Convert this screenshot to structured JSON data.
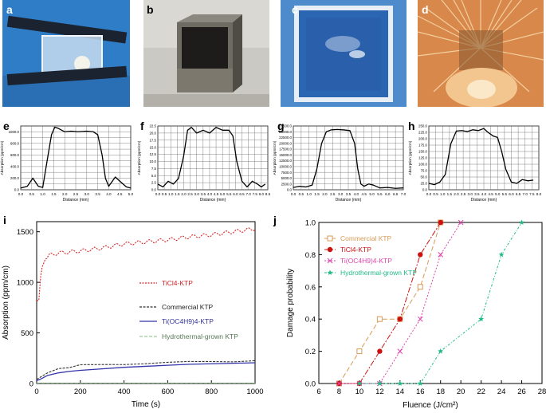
{
  "panels": {
    "a": {
      "label": "a"
    },
    "b": {
      "label": "b"
    },
    "c": {
      "label": "c"
    },
    "d": {
      "label": "d"
    },
    "e": {
      "label": "e"
    },
    "f": {
      "label": "f"
    },
    "g": {
      "label": "g"
    },
    "h": {
      "label": "h"
    },
    "i": {
      "label": "i"
    },
    "j": {
      "label": "j"
    }
  },
  "colors": {
    "photo_a_bg": "#2d7ec7",
    "photo_b_bg": "#c9c7c2",
    "photo_c_bg": "#5b95d0",
    "photo_d_bg": "#d98a4a",
    "ticl4": "#d62728",
    "commercial": "#333333",
    "tioc4h9": "#3333aa",
    "hydro": "#9acd9a",
    "j_commercial": "#d99a55",
    "j_ticl4": "#cc1111",
    "j_tioc": "#dd44aa",
    "j_hydro": "#22bb88"
  },
  "chart_data": [
    {
      "id": "e",
      "type": "line",
      "title": "",
      "xlabel": "Distance (mm)",
      "ylabel": "Absorption (ppm/cm)",
      "xlim": [
        0,
        5
      ],
      "ylim": [
        0,
        1100
      ],
      "xticks": [
        "0.0",
        "0.5",
        "1.0",
        "1.5",
        "2.0",
        "2.5",
        "3.0",
        "3.5",
        "4.0",
        "4.5",
        "5.0"
      ],
      "yticks": [
        "0.0",
        "100.0",
        "200.0",
        "300.0",
        "400.0",
        "500.0",
        "600.0",
        "700.0",
        "800.0",
        "900.0",
        "1000.0",
        "1100.0"
      ],
      "ytick_labels": [
        "0.0",
        "",
        "200.0",
        "",
        "400.0",
        "",
        "600.0",
        "",
        "800.0",
        "",
        "1000.0",
        ""
      ],
      "x": [
        0,
        0.3,
        0.55,
        0.8,
        1.0,
        1.2,
        1.4,
        1.55,
        1.7,
        2.0,
        2.3,
        2.6,
        3.0,
        3.3,
        3.5,
        3.7,
        3.85,
        4.0,
        4.3,
        4.5,
        4.8,
        5.0
      ],
      "y": [
        30,
        60,
        200,
        60,
        40,
        500,
        950,
        1080,
        1060,
        1000,
        1010,
        1000,
        1010,
        1000,
        950,
        600,
        200,
        60,
        220,
        150,
        50,
        30
      ]
    },
    {
      "id": "f",
      "type": "line",
      "title": "",
      "xlabel": "Distance (mm)",
      "ylabel": "Absorption (ppm/cm)",
      "xlim": [
        0,
        8.5
      ],
      "ylim": [
        0,
        22.5
      ],
      "xticks": [
        "0.0",
        "0.5",
        "1.0",
        "1.5",
        "2.0",
        "2.5",
        "3.0",
        "3.5",
        "4.0",
        "4.5",
        "5.0",
        "5.5",
        "6.0",
        "6.5",
        "7.0",
        "7.5",
        "8.0",
        "8.5"
      ],
      "yticks": [
        "0.0",
        "2.5",
        "5.0",
        "7.5",
        "10.0",
        "12.5",
        "15.0",
        "17.5",
        "20.0",
        "22.5"
      ],
      "ytick_labels": [
        "0.0",
        "2.5",
        "5.0",
        "7.5",
        "10.0",
        "12.5",
        "15.0",
        "17.5",
        "20.0",
        "22.5"
      ],
      "x": [
        0,
        0.4,
        0.8,
        1.2,
        1.6,
        2.0,
        2.3,
        2.6,
        3.0,
        3.5,
        4.0,
        4.5,
        5.0,
        5.5,
        5.8,
        6.1,
        6.5,
        6.9,
        7.3,
        7.7,
        8.0,
        8.3
      ],
      "y": [
        2,
        1,
        3,
        2,
        4,
        12,
        21,
        22,
        20,
        21,
        20,
        22,
        21,
        21,
        19,
        10,
        3,
        1,
        3,
        2,
        1,
        2
      ]
    },
    {
      "id": "g",
      "type": "line",
      "title": "",
      "xlabel": "Distance (mm)",
      "ylabel": "Absorption (ppm/cm)",
      "xlim": [
        0,
        7
      ],
      "ylim": [
        0,
        27500
      ],
      "xticks": [
        "0.0",
        "0.5",
        "1.0",
        "1.5",
        "2.0",
        "2.5",
        "3.0",
        "3.5",
        "4.0",
        "4.5",
        "5.0",
        "5.5",
        "6.0",
        "6.5",
        "7.0"
      ],
      "yticks": [
        "0",
        "2500",
        "5000",
        "7500",
        "10000",
        "12500",
        "15000",
        "17500",
        "20000",
        "22500",
        "25000",
        "27500"
      ],
      "ytick_labels": [
        "0.0",
        "2500.0",
        "5000.0",
        "7500.0",
        "10000.0",
        "12500.0",
        "15000.0",
        "17500.0",
        "20000.0",
        "22500.0",
        "25000.0",
        "27500.0"
      ],
      "x": [
        0,
        0.4,
        0.8,
        1.2,
        1.5,
        1.8,
        2.1,
        2.4,
        2.8,
        3.2,
        3.6,
        3.9,
        4.1,
        4.3,
        4.5,
        4.8,
        5.1,
        5.5,
        6.0,
        6.5,
        7.0
      ],
      "y": [
        1000,
        1500,
        1200,
        2000,
        9000,
        20000,
        25000,
        25800,
        26000,
        25800,
        25500,
        20000,
        9000,
        2500,
        1500,
        2500,
        2000,
        800,
        1000,
        600,
        800
      ]
    },
    {
      "id": "h",
      "type": "line",
      "title": "",
      "xlabel": "Distance (mm)",
      "ylabel": "Absorption (ppm/cm)",
      "xlim": [
        0,
        8
      ],
      "ylim": [
        0,
        250
      ],
      "xticks": [
        "0.0",
        "0.5",
        "1.0",
        "1.5",
        "2.0",
        "2.5",
        "3.0",
        "3.5",
        "4.0",
        "4.5",
        "5.0",
        "5.5",
        "6.0",
        "6.5",
        "7.0",
        "7.5",
        "8.0"
      ],
      "yticks": [
        "0",
        "25",
        "50",
        "75",
        "100",
        "125",
        "150",
        "175",
        "200",
        "225",
        "250"
      ],
      "ytick_labels": [
        "0.0",
        "25.0",
        "50.0",
        "75.0",
        "100.0",
        "125.0",
        "150.0",
        "175.0",
        "200.0",
        "225.0",
        "250.0"
      ],
      "x": [
        0,
        0.4,
        0.8,
        1.2,
        1.6,
        2.0,
        2.4,
        2.8,
        3.2,
        3.6,
        4.0,
        4.3,
        4.7,
        5.0,
        5.3,
        5.6,
        6.0,
        6.4,
        6.8,
        7.2,
        7.6
      ],
      "y": [
        25,
        20,
        30,
        60,
        180,
        230,
        232,
        228,
        235,
        232,
        240,
        225,
        210,
        205,
        150,
        80,
        30,
        25,
        40,
        35,
        38
      ]
    },
    {
      "id": "i",
      "type": "line",
      "title": "",
      "xlabel": "Time (s)",
      "ylabel": "Absorption (ppm/cm)",
      "xlim": [
        0,
        1000
      ],
      "ylim": [
        0,
        1600
      ],
      "xticks": [
        "0",
        "200",
        "400",
        "600",
        "800",
        "1000"
      ],
      "yticks": [
        "0",
        "500",
        "1000",
        "1500"
      ],
      "series": [
        {
          "name": "TiCl4-KTP",
          "x": [
            0,
            10,
            18,
            25,
            40,
            60,
            100,
            150,
            200,
            300,
            400,
            500,
            600,
            700,
            800,
            900,
            1000
          ],
          "y": [
            820,
            820,
            1050,
            1150,
            1230,
            1270,
            1290,
            1300,
            1310,
            1340,
            1380,
            1400,
            1420,
            1450,
            1470,
            1500,
            1530
          ]
        },
        {
          "name": "Commercial KTP",
          "x": [
            0,
            15,
            50,
            100,
            150,
            200,
            300,
            400,
            500,
            600,
            700,
            800,
            900,
            1000
          ],
          "y": [
            40,
            60,
            110,
            140,
            165,
            180,
            190,
            195,
            200,
            205,
            210,
            215,
            220,
            225
          ]
        },
        {
          "name": "Ti(OC4H9)4-KTP",
          "x": [
            0,
            15,
            50,
            100,
            150,
            200,
            300,
            400,
            500,
            600,
            700,
            800,
            900,
            1000
          ],
          "y": [
            30,
            40,
            80,
            105,
            120,
            130,
            145,
            160,
            170,
            180,
            190,
            195,
            200,
            205
          ]
        },
        {
          "name": "Hydrothermal-grown KTP",
          "x": [
            0,
            1000
          ],
          "y": [
            5,
            5
          ]
        }
      ]
    },
    {
      "id": "j",
      "type": "scatter",
      "title": "",
      "xlabel": "Fluence (J/cm²)",
      "ylabel": "Damage probability",
      "xlim": [
        6,
        28
      ],
      "ylim": [
        0,
        1.0
      ],
      "xticks": [
        "6",
        "8",
        "10",
        "12",
        "14",
        "16",
        "18",
        "20",
        "22",
        "24",
        "26",
        "28"
      ],
      "yticks": [
        "0.0",
        "0.2",
        "0.4",
        "0.6",
        "0.8",
        "1.0"
      ],
      "series": [
        {
          "name": "Commercial KTP",
          "x": [
            8,
            10,
            12,
            14,
            16,
            18
          ],
          "y": [
            0,
            0.2,
            0.4,
            0.4,
            0.6,
            1.0
          ]
        },
        {
          "name": "TiCl4-KTP",
          "x": [
            8,
            10,
            12,
            14,
            16,
            18
          ],
          "y": [
            0,
            0,
            0.2,
            0.4,
            0.8,
            1.0
          ]
        },
        {
          "name": "Ti(OC4H9)4-KTP",
          "x": [
            8,
            10,
            12,
            14,
            16,
            18,
            20
          ],
          "y": [
            0,
            0,
            0,
            0.2,
            0.4,
            0.8,
            1.0
          ]
        },
        {
          "name": "Hydrothermal-grown KTP",
          "x": [
            10,
            12,
            14,
            16,
            18,
            22,
            24,
            26
          ],
          "y": [
            0,
            0,
            0,
            0,
            0.2,
            0.4,
            0.8,
            1.0
          ]
        }
      ]
    }
  ],
  "legend_i": {
    "ticl4": "TiCl4-KTP",
    "commercial": "Commercial KTP",
    "tioc": "Ti(OC4H9)4-KTP",
    "hydro": "Hydrothermal-grown KTP"
  },
  "legend_j": {
    "commercial": "Commercial KTP",
    "ticl4": "TiCl4-KTP",
    "tioc": "Ti(OC4H9)4-KTP",
    "hydro": "Hydrothermal-grown KTP"
  }
}
